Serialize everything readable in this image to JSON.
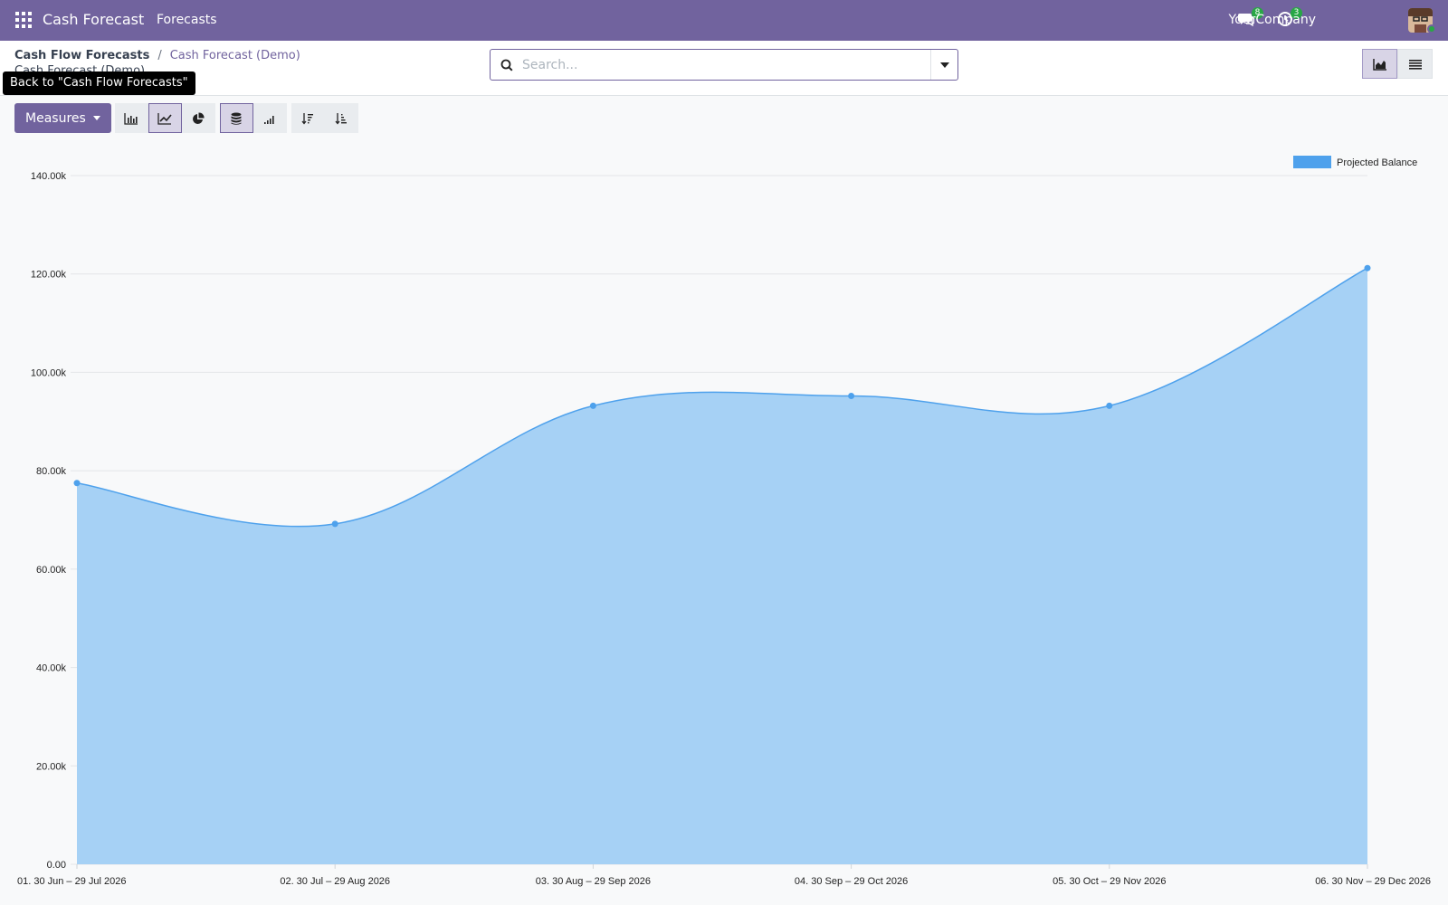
{
  "navbar": {
    "app_name": "Cash Forecast",
    "menu": [
      "Forecasts"
    ],
    "messages_count": "8",
    "activities_count": "3",
    "company": "YourCompany",
    "bg_color": "#71639e"
  },
  "breadcrumb": {
    "parent": "Cash Flow Forecasts",
    "separator": "/",
    "current": "Cash Forecast (Demo)",
    "subtitle": "Cash Forecast (Demo)"
  },
  "tooltip": "Back to \"Cash Flow Forecasts\"",
  "search": {
    "placeholder": "Search..."
  },
  "toolbar": {
    "measures_label": "Measures",
    "chart_type_buttons": [
      "bar-chart-icon",
      "line-chart-icon",
      "pie-chart-icon"
    ],
    "active_chart_type": "line",
    "stacked_active": true
  },
  "view_switch": {
    "active": "graph"
  },
  "chart_data": {
    "type": "area",
    "categories": [
      "01. 30 Jun – 29 Jul 2026",
      "02. 30 Jul – 29 Aug 2026",
      "03. 30 Aug – 29 Sep 2026",
      "04. 30 Sep – 29 Oct 2026",
      "05. 30 Oct – 29 Nov 2026",
      "06. 30 Nov – 29 Dec 2026"
    ],
    "series": [
      {
        "name": "Projected Balance",
        "values": [
          77500,
          69200,
          93200,
          95200,
          93200,
          121200
        ],
        "color": "#4ea1ec",
        "fill": "#a6d1f5"
      }
    ],
    "ylim": [
      0,
      140000
    ],
    "yticks": [
      0,
      20000,
      40000,
      60000,
      80000,
      100000,
      120000,
      140000
    ],
    "ytick_labels": [
      "0.00",
      "20.00k",
      "40.00k",
      "60.00k",
      "80.00k",
      "100.00k",
      "120.00k",
      "140.00k"
    ],
    "grid": true,
    "legend_position": "top-right"
  }
}
